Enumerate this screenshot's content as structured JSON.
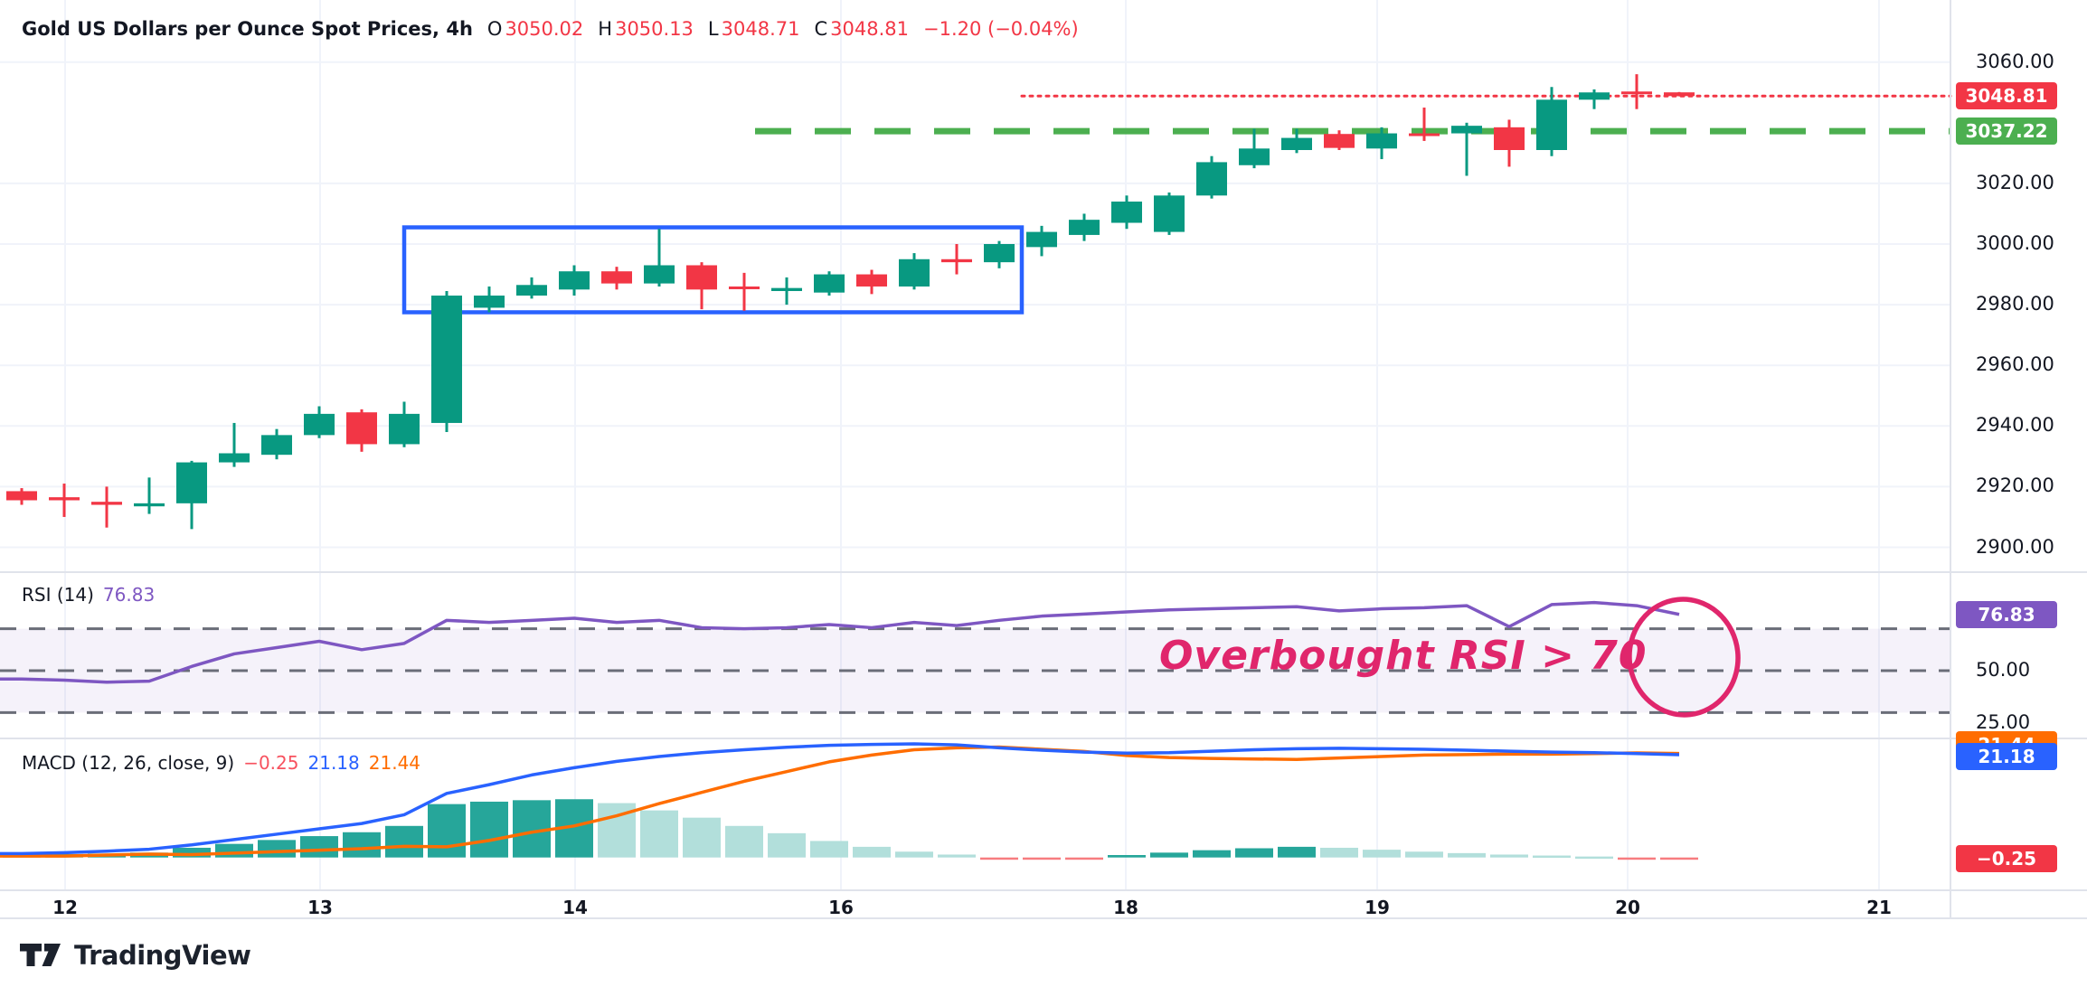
{
  "header": {
    "symbol_title": "Gold US Dollars per Ounce Spot Prices, 4h",
    "o_label": "O",
    "o_value": "3050.02",
    "h_label": "H",
    "h_value": "3050.13",
    "l_label": "L",
    "l_value": "3048.71",
    "c_label": "C",
    "c_value": "3048.81",
    "change": "−1.20 (−0.04%)"
  },
  "rsi_pane": {
    "name": "RSI (14)",
    "value": "76.83"
  },
  "macd_pane": {
    "name": "MACD (12, 26, close, 9)",
    "hist_value": "−0.25",
    "macd_value": "21.18",
    "signal_value": "21.44"
  },
  "annotations": {
    "overbought_text": "Overbought RSI > 70",
    "range_box": {
      "top_price": 3005.5,
      "bottom_price": 2977.5
    },
    "level_line_price": 3037.22,
    "last_price_line": 3048.81
  },
  "branding": {
    "logo_text": "TradingView"
  },
  "colors": {
    "up": "#089981",
    "down": "#F23645",
    "macd_line": "#2962FF",
    "signal_line": "#FF6D00",
    "hist_up": "#26A69A",
    "hist_up_fade": "#B2DFDB",
    "hist_down": "#F77C80",
    "rsi_line": "#7E57C2",
    "rsi_badge": "#7E57C2",
    "level_green": "#4CAF50",
    "box_blue": "#2962FF",
    "annotation_pink": "#E0266C",
    "grid": "#F0F3FA",
    "separator": "#E0E3EB",
    "text": "#131722",
    "rsi_band_fill": "rgba(126,87,194,0.08)",
    "rsi_dash": "#6A6D78"
  },
  "chart_data": [
    {
      "type": "candlestick",
      "title": "Gold US Dollars per Ounce Spot Prices, 4h",
      "interval": "4h",
      "x_tick_labels": [
        "12",
        "13",
        "14",
        "16",
        "18",
        "19",
        "20",
        "21"
      ],
      "y_ticks": [
        {
          "label": "3060.00",
          "value": 3060
        },
        {
          "label": "3020.00",
          "value": 3020
        },
        {
          "label": "3000.00",
          "value": 3000
        },
        {
          "label": "2980.00",
          "value": 2980
        },
        {
          "label": "2960.00",
          "value": 2960
        },
        {
          "label": "2940.00",
          "value": 2940
        },
        {
          "label": "2920.00",
          "value": 2920
        },
        {
          "label": "2900.00",
          "value": 2900
        }
      ],
      "last_price_badge": {
        "label": "3048.81",
        "value": 3048.81
      },
      "level_badge": {
        "label": "3037.22",
        "value": 3037.22
      },
      "ylim": [
        2895,
        3062
      ],
      "candles_ohlc": [
        [
          2918.5,
          2919.5,
          2914,
          2915.5
        ],
        [
          2916.5,
          2921,
          2910,
          2915.5
        ],
        [
          2915,
          2920,
          2906.5,
          2914
        ],
        [
          2913.5,
          2923,
          2911,
          2914.5
        ],
        [
          2914.5,
          2928.5,
          2906,
          2928
        ],
        [
          2928,
          2941,
          2926.5,
          2931
        ],
        [
          2930.5,
          2939,
          2929,
          2937
        ],
        [
          2937,
          2946.5,
          2936,
          2944
        ],
        [
          2944.5,
          2945.5,
          2931.5,
          2934
        ],
        [
          2934,
          2948,
          2933,
          2944
        ],
        [
          2941,
          2984.5,
          2938,
          2983
        ],
        [
          2979,
          2986,
          2977.5,
          2983
        ],
        [
          2983,
          2989,
          2982,
          2986.5
        ],
        [
          2985,
          2993,
          2983,
          2991
        ],
        [
          2991,
          2992.5,
          2985,
          2987
        ],
        [
          2987,
          3005,
          2986,
          2993
        ],
        [
          2993,
          2994,
          2978.5,
          2985
        ],
        [
          2986,
          2990.5,
          2978,
          2985.5
        ],
        [
          2984.5,
          2989,
          2980,
          2985.5
        ],
        [
          2984,
          2991,
          2983,
          2990
        ],
        [
          2990,
          2991.5,
          2983.5,
          2986
        ],
        [
          2986,
          2997,
          2985,
          2995
        ],
        [
          2995,
          3000,
          2990,
          2994
        ],
        [
          2994,
          3001,
          2992,
          3000
        ],
        [
          2999,
          3006,
          2996,
          3004
        ],
        [
          3003,
          3010,
          3001,
          3008
        ],
        [
          3007,
          3016,
          3005,
          3014
        ],
        [
          3004,
          3017,
          3003,
          3016
        ],
        [
          3016,
          3029,
          3015,
          3027
        ],
        [
          3026,
          3038,
          3025,
          3031.5
        ],
        [
          3031,
          3038,
          3030,
          3035
        ],
        [
          3036.3,
          3037.5,
          3031,
          3031.7
        ],
        [
          3031.5,
          3038.5,
          3028,
          3036.5
        ],
        [
          3036.5,
          3045,
          3034,
          3036
        ],
        [
          3036.5,
          3040,
          3022.5,
          3039
        ],
        [
          3038.5,
          3041,
          3025.5,
          3031
        ],
        [
          3031,
          3051.8,
          3029,
          3047.6
        ],
        [
          3047.6,
          3051,
          3044.5,
          3050
        ],
        [
          3050.3,
          3056,
          3044.5,
          3050
        ],
        [
          3050.02,
          3050.13,
          3048.71,
          3048.81
        ]
      ]
    },
    {
      "type": "line",
      "name": "RSI (14)",
      "current_value": 76.83,
      "overbought_level": 70,
      "mid_level": 50,
      "oversold_level": 30,
      "y_ticks": [
        {
          "label": "50.00",
          "value": 50
        },
        {
          "label": "25.00",
          "value": 25
        }
      ],
      "badge": {
        "label": "76.83",
        "value": 76.83
      },
      "values": [
        46,
        45.5,
        44.5,
        45,
        52,
        58,
        61,
        64,
        60,
        63,
        74,
        73,
        74,
        75,
        73,
        74,
        70.5,
        70,
        70.5,
        72,
        70.5,
        73,
        71.5,
        74,
        76,
        77,
        78,
        79,
        79.5,
        80,
        80.5,
        78.5,
        79.5,
        80,
        81,
        71,
        81.5,
        82.5,
        81,
        76.83
      ]
    },
    {
      "type": "macd",
      "name": "MACD (12, 26, close, 9)",
      "current": {
        "hist": -0.25,
        "macd": 21.18,
        "signal": 21.44
      },
      "badges": [
        {
          "label": "21.44",
          "value": 21.44,
          "color_key": "signal_line"
        },
        {
          "label": "21.18",
          "value": 21.18,
          "color_key": "macd_line"
        },
        {
          "label": "−0.25",
          "value": -0.25,
          "color_key": "down"
        }
      ],
      "macd": [
        0.8,
        1.0,
        1.3,
        1.7,
        2.6,
        3.7,
        4.8,
        5.9,
        7.0,
        8.8,
        13.2,
        15.0,
        17.0,
        18.5,
        19.8,
        20.8,
        21.6,
        22.2,
        22.7,
        23.1,
        23.3,
        23.4,
        23.2,
        22.6,
        22.1,
        21.7,
        21.5,
        21.6,
        21.9,
        22.2,
        22.4,
        22.5,
        22.4,
        22.3,
        22.1,
        21.9,
        21.7,
        21.6,
        21.4,
        21.18
      ],
      "signal": [
        0.3,
        0.3,
        0.5,
        0.7,
        0.6,
        0.9,
        1.2,
        1.5,
        1.8,
        2.3,
        2.2,
        3.5,
        5.2,
        6.5,
        8.6,
        11.1,
        13.4,
        15.7,
        17.7,
        19.7,
        21.1,
        22.2,
        22.6,
        22.75,
        22.3,
        21.85,
        21.0,
        20.6,
        20.4,
        20.3,
        20.2,
        20.5,
        20.8,
        21.1,
        21.2,
        21.3,
        21.3,
        21.4,
        21.55,
        21.43
      ],
      "hist": [
        0.5,
        0.7,
        0.8,
        1.0,
        2.0,
        2.8,
        3.6,
        4.4,
        5.2,
        6.5,
        11.0,
        11.5,
        11.8,
        12.0,
        11.2,
        9.7,
        8.2,
        6.5,
        5.0,
        3.4,
        2.2,
        1.2,
        0.6,
        -0.15,
        -0.2,
        -0.15,
        0.5,
        1.0,
        1.5,
        1.9,
        2.2,
        2.0,
        1.6,
        1.2,
        0.9,
        0.6,
        0.4,
        0.2,
        -0.15,
        -0.25
      ]
    }
  ]
}
